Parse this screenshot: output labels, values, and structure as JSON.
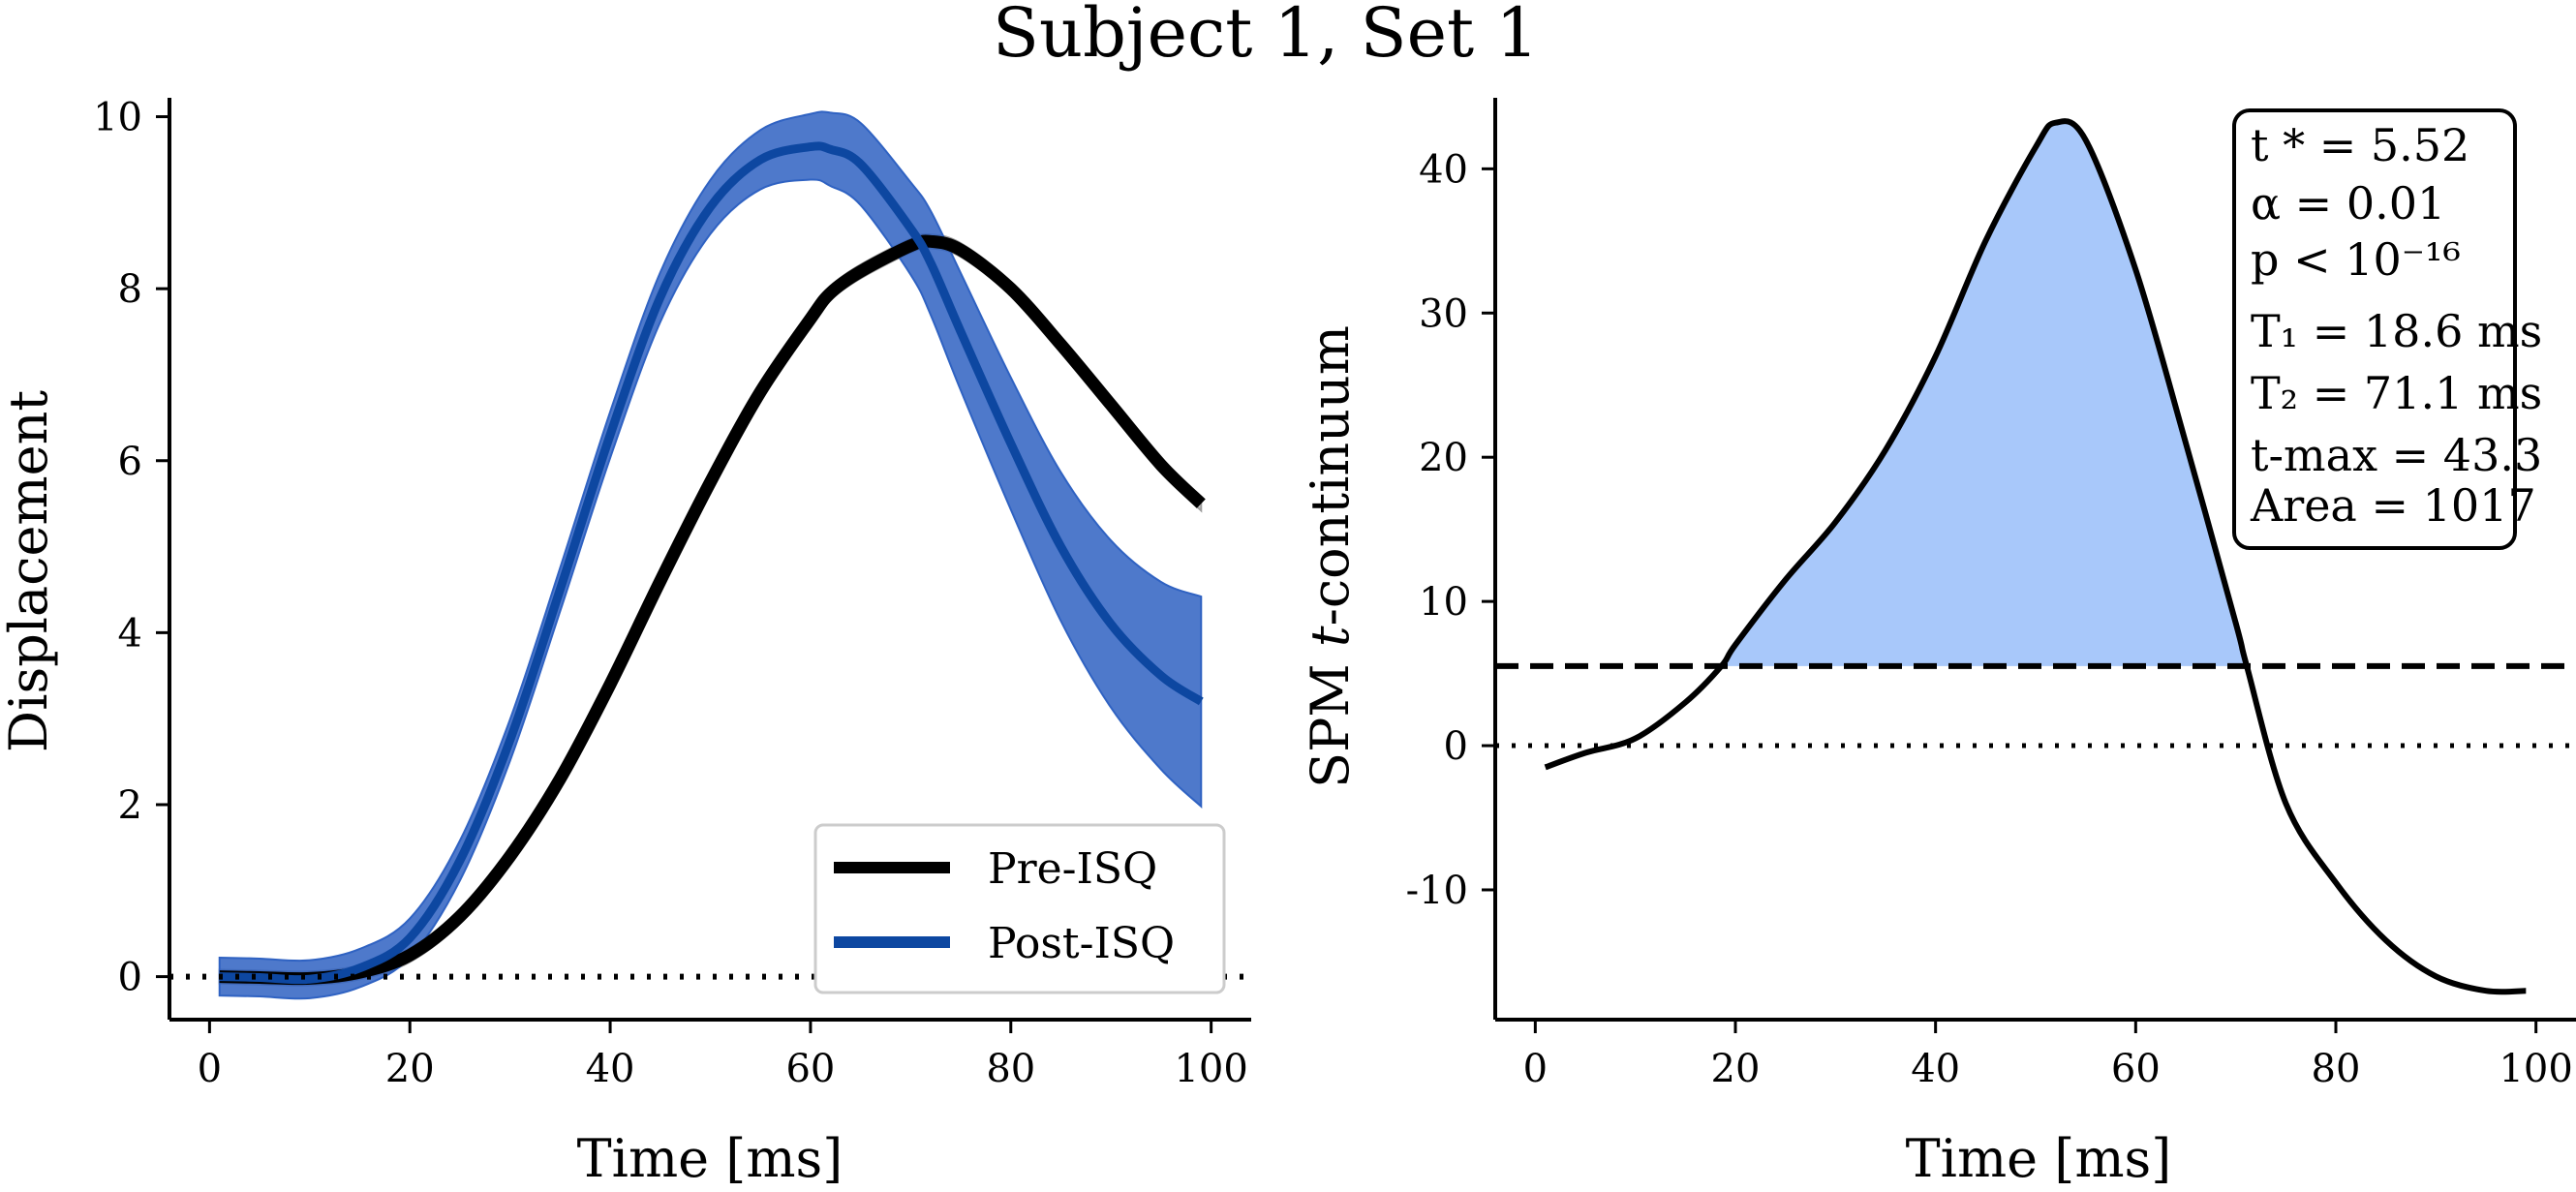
{
  "figure": {
    "title": "Subject 1, Set 1"
  },
  "chart_data": [
    {
      "type": "line",
      "panel": "left",
      "xlabel": "Time [ms]",
      "ylabel": "Displacement",
      "xlim": [
        -4,
        104
      ],
      "ylim": [
        -0.5,
        10.4
      ],
      "xticks": [
        "0",
        "20",
        "40",
        "60",
        "80",
        "100"
      ],
      "yticks": [
        "0",
        "2",
        "4",
        "6",
        "8",
        "10"
      ],
      "reference_line": {
        "y": 0,
        "style": "dotted"
      },
      "legend": {
        "placement": "lower-right",
        "entries": [
          "Pre-ISQ",
          "Post-ISQ"
        ]
      },
      "colors": {
        "pre": "#000000",
        "post": "#0d47a1",
        "pre_band": "#9e9e9e",
        "post_band": "#2f62c2"
      },
      "x": [
        1,
        5,
        10,
        15,
        20,
        25,
        30,
        35,
        40,
        45,
        50,
        55,
        60,
        62,
        65,
        70,
        72,
        75,
        80,
        85,
        90,
        95,
        99
      ],
      "series": [
        {
          "name": "Pre-ISQ",
          "values": [
            0.0,
            -0.01,
            -0.02,
            0.05,
            0.25,
            0.7,
            1.4,
            2.3,
            3.4,
            4.6,
            5.75,
            6.8,
            7.65,
            7.95,
            8.2,
            8.5,
            8.55,
            8.45,
            8.0,
            7.35,
            6.65,
            5.95,
            5.5
          ],
          "band_halfwidth": 0.08
        },
        {
          "name": "Post-ISQ",
          "values": [
            0.0,
            -0.01,
            -0.03,
            0.1,
            0.45,
            1.35,
            2.75,
            4.5,
            6.3,
            7.9,
            8.95,
            9.5,
            9.65,
            9.62,
            9.45,
            8.7,
            8.3,
            7.5,
            6.2,
            5.0,
            4.1,
            3.5,
            3.2
          ],
          "band_halfwidth": 0.22,
          "band_growth": 0.25
        }
      ]
    },
    {
      "type": "line",
      "panel": "right",
      "xlabel": "Time [ms]",
      "ylabel": "SPM t-continuum",
      "xlim": [
        -4,
        104
      ],
      "ylim": [
        -19,
        46
      ],
      "xticks": [
        "0",
        "20",
        "40",
        "60",
        "80",
        "100"
      ],
      "yticks": [
        "-10",
        "0",
        "10",
        "20",
        "30",
        "40"
      ],
      "threshold": {
        "y": 5.52,
        "style": "dashed"
      },
      "reference_line": {
        "y": 0,
        "style": "dotted"
      },
      "fill": {
        "from_x": 18.6,
        "to_x": 71.1,
        "color": "#a8c8fa"
      },
      "x": [
        1,
        5,
        10,
        15,
        18.6,
        20,
        25,
        30,
        35,
        40,
        45,
        50,
        52,
        55,
        60,
        65,
        70,
        71.1,
        75,
        80,
        85,
        90,
        95,
        99
      ],
      "series": [
        {
          "name": "",
          "values": [
            -1.5,
            -0.5,
            0.5,
            3.0,
            5.52,
            7.0,
            11.5,
            15.5,
            20.5,
            27.0,
            35.0,
            41.5,
            43.2,
            42.0,
            33.0,
            21.0,
            8.5,
            5.52,
            -4.0,
            -9.5,
            -13.5,
            -16.0,
            -17.0,
            -17.0
          ]
        }
      ],
      "stats_box": {
        "lines": [
          "t * = 5.52",
          "α = 0.01",
          "p < 10⁻¹⁶",
          "T₁ = 18.6 ms",
          "T₂ = 71.1 ms",
          "t-max = 43.3",
          "Area = 1017"
        ]
      }
    }
  ]
}
